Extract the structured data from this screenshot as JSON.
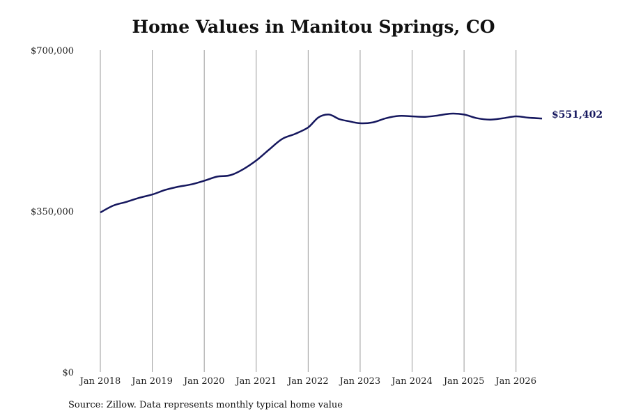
{
  "chart_data": {
    "type": "line",
    "title": "Home Values in Manitou Springs, CO",
    "xlabel": "",
    "ylabel": "",
    "ylim": [
      0,
      700000
    ],
    "y_ticks": [
      "$0",
      "$350,000",
      "$700,000"
    ],
    "y_tick_values": [
      0,
      350000,
      700000
    ],
    "x_ticks": [
      "Jan 2018",
      "Jan 2019",
      "Jan 2020",
      "Jan 2021",
      "Jan 2022",
      "Jan 2023",
      "Jan 2024",
      "Jan 2025",
      "Jan 2026"
    ],
    "x_tick_values": [
      2018,
      2019,
      2020,
      2021,
      2022,
      2023,
      2024,
      2025,
      2026
    ],
    "xlim": [
      2018,
      2026.5
    ],
    "grid": "vertical",
    "line_color": "#15175e",
    "end_label": "$551,402",
    "series": [
      {
        "x": [
          2018.0,
          2018.25,
          2018.5,
          2018.75,
          2019.0,
          2019.25,
          2019.5,
          2019.75,
          2020.0,
          2020.25,
          2020.5,
          2020.75,
          2021.0,
          2021.25,
          2021.5,
          2021.75,
          2022.0,
          2022.2,
          2022.4,
          2022.6,
          2022.8,
          2023.0,
          2023.25,
          2023.5,
          2023.75,
          2024.0,
          2024.25,
          2024.5,
          2024.75,
          2025.0,
          2025.25,
          2025.5,
          2025.75,
          2026.0,
          2026.25,
          2026.5
        ],
        "y": [
          347000,
          362000,
          370000,
          379000,
          386000,
          396000,
          403000,
          408000,
          416000,
          425000,
          428000,
          441000,
          460000,
          484000,
          507000,
          518000,
          532000,
          554000,
          560000,
          550000,
          545000,
          541000,
          543000,
          552000,
          557000,
          556000,
          555000,
          558000,
          562000,
          560000,
          552000,
          549000,
          552000,
          556000,
          553000,
          551402
        ]
      }
    ]
  },
  "footer": {
    "source": "Source: Zillow. Data represents monthly typical home value"
  }
}
